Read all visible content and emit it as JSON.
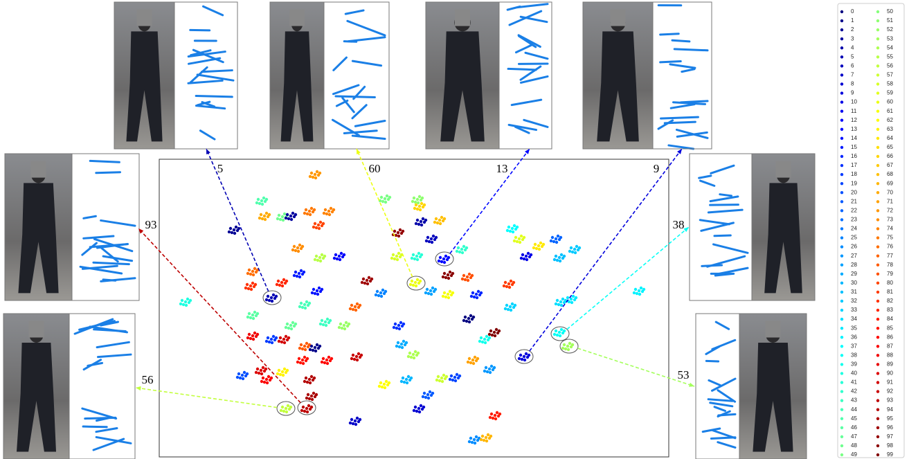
{
  "chart_data": {
    "type": "scatter",
    "xlim": [
      0,
      736
    ],
    "ylim": [
      0,
      430
    ],
    "colormap": "jet",
    "id_range": [
      0,
      99
    ],
    "points": {
      "x": [
        225,
        148,
        152,
        178,
        190,
        217,
        245,
        230,
        108,
        200,
        232,
        260,
        135,
        132,
        162,
        177,
        202,
        228,
        210,
        190,
        135,
        162,
        135,
        180,
        210,
        225,
        240,
        267,
        283,
        207,
        242,
        285,
        147,
        178,
        120,
        217,
        183,
        213,
        220,
        155,
        38,
        300,
        320,
        325,
        283,
        326,
        373,
        376,
        345,
        378,
        405,
        393,
        343,
        372,
        411,
        437,
        370,
        417,
        445,
        392,
        417,
        458,
        346,
        350,
        367,
        447,
        484,
        470,
        453,
        477,
        408,
        427,
        357,
        375,
        388,
        485,
        455,
        472,
        520,
        548,
        573,
        578,
        600,
        505,
        507,
        527,
        580,
        595,
        578,
        590,
        693,
        510,
        530
      ],
      "y": [
        408,
        370,
        348,
        347,
        348,
        355,
        355,
        335,
        328,
        302,
        288,
        290,
        268,
        247,
        230,
        252,
        265,
        240,
        220,
        190,
        205,
        170,
        175,
        170,
        160,
        158,
        195,
        190,
        217,
        140,
        140,
        145,
        125,
        123,
        118,
        112,
        70,
        70,
        88,
        112,
        224,
        255,
        237,
        105,
        52,
        373,
        372,
        362,
        324,
        340,
        342,
        315,
        290,
        290,
        286,
        300,
        252,
        263,
        260,
        240,
        235,
        235,
        190,
        163,
        148,
        200,
        180,
        170,
        140,
        127,
        114,
        115,
        112,
        70,
        90,
        60,
        25,
        28,
        315,
        305,
        315,
        288,
        300,
        250,
        217,
        145,
        224,
        228,
        180,
        160,
        240,
        330,
        290
      ],
      "ids": [
        72,
        45,
        70,
        48,
        3,
        75,
        74,
        80,
        2,
        73,
        55,
        12,
        76,
        82,
        5,
        83,
        15,
        14,
        44,
        47,
        46,
        18,
        88,
        91,
        78,
        1,
        43,
        52,
        77,
        85,
        86,
        92,
        90,
        63,
        20,
        94,
        56,
        93,
        95,
        87,
        40,
        96,
        25,
        62,
        7,
        49,
        51,
        66,
        97,
        4,
        68,
        6,
        58,
        41,
        13,
        42,
        60,
        98,
        79,
        28,
        61,
        16,
        17,
        29,
        54,
        0,
        99,
        39,
        71,
        27,
        57,
        19,
        30,
        8,
        21,
        84,
        26,
        69,
        59,
        64,
        22,
        31,
        32,
        81,
        33,
        9,
        34,
        35,
        38,
        53,
        36,
        37,
        10
      ]
    },
    "highlights": [
      {
        "label": "5",
        "x": 163,
        "y": 230
      },
      {
        "label": "60",
        "x": 371,
        "y": 251
      },
      {
        "label": "13",
        "x": 412,
        "y": 286
      },
      {
        "label": "9",
        "x": 527,
        "y": 145
      },
      {
        "label": "93",
        "x": 213,
        "y": 71
      },
      {
        "label": "38",
        "x": 579,
        "y": 178
      },
      {
        "label": "56",
        "x": 183,
        "y": 70
      },
      {
        "label": "53",
        "x": 592,
        "y": 160
      }
    ],
    "legend": {
      "labels": [
        "0",
        "1",
        "2",
        "3",
        "4",
        "5",
        "6",
        "7",
        "8",
        "9",
        "10",
        "11",
        "12",
        "13",
        "14",
        "15",
        "16",
        "17",
        "18",
        "19",
        "20",
        "21",
        "22",
        "23",
        "24",
        "25",
        "26",
        "27",
        "28",
        "29",
        "30",
        "31",
        "32",
        "33",
        "34",
        "35",
        "36",
        "37",
        "38",
        "39",
        "40",
        "41",
        "42",
        "43",
        "44",
        "45",
        "46",
        "47",
        "48",
        "49",
        "50",
        "51",
        "52",
        "53",
        "54",
        "55",
        "56",
        "57",
        "58",
        "59",
        "60",
        "61",
        "62",
        "63",
        "64",
        "65",
        "66",
        "67",
        "68",
        "69",
        "70",
        "71",
        "72",
        "73",
        "74",
        "75",
        "76",
        "77",
        "78",
        "79",
        "80",
        "81",
        "82",
        "83",
        "84",
        "85",
        "86",
        "87",
        "88",
        "89",
        "90",
        "91",
        "92",
        "93",
        "94",
        "95",
        "96",
        "97",
        "98",
        "99"
      ]
    }
  }
}
